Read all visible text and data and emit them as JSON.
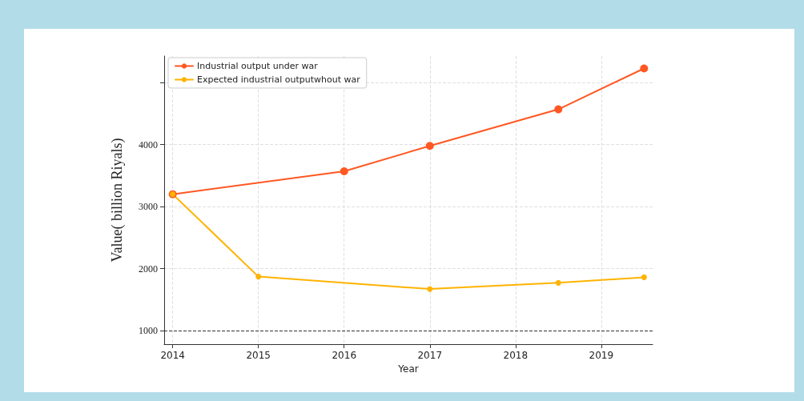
{
  "chart_data": {
    "type": "line",
    "xlabel": "Year",
    "ylabel": "Value( billion Riyals)",
    "xlim": [
      2013.9,
      2019.6
    ],
    "xticks": [
      2014,
      2015,
      2016,
      2017,
      2018,
      2019
    ],
    "ylim": [
      780,
      5430
    ],
    "yticks": [
      1000,
      2000,
      3000,
      4000,
      {
        "value": 5000,
        "label": null
      }
    ],
    "series": [
      {
        "name": "Industrial output under war",
        "color": "#ff5722",
        "x": [
          2014,
          2016,
          2017,
          2018.5,
          2019.5
        ],
        "values": [
          3200,
          3570,
          3980,
          4570,
          5230
        ]
      },
      {
        "name": "Expected industrial outputwhout war",
        "color": "#ffb300",
        "x": [
          2014,
          2015,
          2017,
          2018.5,
          2019.5
        ],
        "values": [
          3200,
          1870,
          1670,
          1770,
          1860
        ]
      }
    ],
    "ref_lines": [
      {
        "axis": "y",
        "value": 1000,
        "color": "#333333",
        "line_style": "dashed"
      }
    ],
    "grid": true,
    "legend": "top left",
    "marker": "circle",
    "line_style": "solid"
  }
}
